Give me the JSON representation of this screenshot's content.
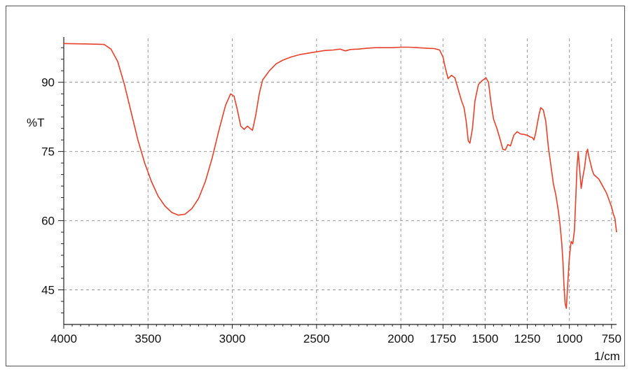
{
  "chart_data": {
    "type": "line",
    "title": "",
    "xlabel": "1/cm",
    "ylabel": "%T",
    "x_reversed": true,
    "xlim": [
      4000,
      720
    ],
    "ylim": [
      37.5,
      99.5
    ],
    "x_ticks": [
      4000,
      3500,
      3000,
      2500,
      2000,
      1750,
      1500,
      1250,
      1000,
      750
    ],
    "x_tick_labels": [
      "4000",
      "3500",
      "3000",
      "2500",
      "2000",
      "1750",
      "1500",
      "1250",
      "1000",
      "750"
    ],
    "y_ticks": [
      45,
      60,
      75,
      90
    ],
    "y_tick_labels": [
      "45",
      "60",
      "75",
      "90"
    ],
    "grid": true,
    "line_color": "#e8402a",
    "grid_color": "#9a9a9a",
    "series": [
      {
        "name": "",
        "x": [
          4000,
          3850,
          3760,
          3720,
          3680,
          3640,
          3600,
          3560,
          3520,
          3480,
          3440,
          3400,
          3360,
          3320,
          3280,
          3240,
          3200,
          3160,
          3120,
          3080,
          3040,
          3010,
          2990,
          2970,
          2950,
          2930,
          2910,
          2895,
          2880,
          2860,
          2840,
          2820,
          2780,
          2740,
          2700,
          2650,
          2600,
          2550,
          2500,
          2450,
          2400,
          2360,
          2330,
          2300,
          2250,
          2200,
          2150,
          2100,
          2050,
          2000,
          1950,
          1900,
          1850,
          1800,
          1770,
          1750,
          1735,
          1720,
          1700,
          1680,
          1660,
          1640,
          1625,
          1612,
          1600,
          1590,
          1575,
          1560,
          1540,
          1520,
          1505,
          1495,
          1480,
          1465,
          1450,
          1430,
          1410,
          1395,
          1380,
          1365,
          1350,
          1330,
          1310,
          1290,
          1270,
          1250,
          1235,
          1220,
          1210,
          1200,
          1190,
          1180,
          1170,
          1155,
          1140,
          1125,
          1110,
          1095,
          1080,
          1065,
          1055,
          1045,
          1038,
          1032,
          1025,
          1018,
          1010,
          1000,
          990,
          980,
          970,
          962,
          955,
          948,
          940,
          930,
          920,
          910,
          900,
          892,
          885,
          875,
          865,
          855,
          840,
          825,
          810,
          795,
          780,
          765,
          750,
          740,
          730,
          720
        ],
        "y": [
          98.4,
          98.3,
          98.2,
          97.2,
          94.5,
          89.5,
          83.5,
          77.5,
          72.5,
          68.5,
          65.3,
          63.2,
          61.8,
          61.2,
          61.4,
          62.6,
          64.8,
          68.5,
          73.5,
          79.5,
          85.0,
          87.5,
          87.0,
          84.0,
          80.5,
          79.8,
          80.5,
          80.0,
          79.6,
          83.0,
          87.5,
          90.5,
          92.5,
          94.0,
          94.8,
          95.5,
          96.0,
          96.3,
          96.6,
          96.9,
          97.0,
          97.2,
          96.8,
          97.1,
          97.2,
          97.4,
          97.5,
          97.5,
          97.5,
          97.6,
          97.6,
          97.5,
          97.4,
          97.3,
          97.0,
          95.5,
          93.0,
          90.8,
          91.5,
          91.0,
          88.5,
          86.0,
          84.5,
          81.5,
          77.3,
          76.8,
          80.0,
          86.0,
          89.5,
          90.3,
          90.7,
          91.0,
          90.0,
          85.5,
          82.0,
          80.0,
          77.5,
          75.5,
          75.3,
          76.5,
          76.2,
          78.5,
          79.3,
          78.8,
          78.7,
          78.5,
          78.2,
          78.0,
          77.5,
          79.0,
          81.0,
          83.0,
          84.5,
          84.0,
          81.5,
          76.0,
          72.0,
          68.0,
          65.5,
          62.0,
          59.0,
          55.0,
          51.0,
          46.0,
          42.0,
          41.0,
          46.0,
          52.0,
          55.5,
          55.0,
          58.0,
          65.0,
          71.5,
          75.0,
          71.5,
          67.0,
          69.5,
          71.5,
          74.5,
          75.5,
          74.0,
          72.5,
          71.0,
          70.0,
          69.5,
          69.0,
          68.0,
          67.0,
          66.0,
          64.5,
          63.0,
          61.5,
          60.5,
          57.5
        ]
      }
    ]
  }
}
